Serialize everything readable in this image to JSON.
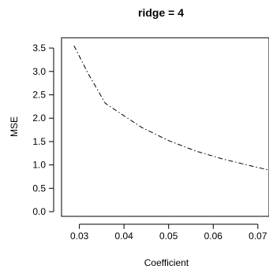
{
  "chart_data": {
    "type": "line",
    "title": "ridge = 4",
    "xlabel": "Coefficient",
    "ylabel": "MSE",
    "xlim": [
      0.026,
      0.0725
    ],
    "ylim": [
      -0.1,
      3.72
    ],
    "xticks": [
      0.03,
      0.04,
      0.05,
      0.06,
      0.07
    ],
    "xtick_labels": [
      "0.03",
      "0.04",
      "0.05",
      "0.06",
      "0.07"
    ],
    "yticks": [
      0.0,
      0.5,
      1.0,
      1.5,
      2.0,
      2.5,
      3.0,
      3.5
    ],
    "ytick_labels": [
      "0.0",
      "0.5",
      "1.0",
      "1.5",
      "2.0",
      "2.5",
      "3.0",
      "3.5"
    ],
    "grid": false,
    "legend": "none",
    "line_style": "dashdot",
    "line_color": "#000000",
    "series": [
      {
        "x": [
          0.0288,
          0.032,
          0.0358,
          0.04,
          0.044,
          0.05,
          0.056,
          0.062,
          0.068,
          0.0725
        ],
        "y": [
          3.55,
          2.95,
          2.32,
          2.05,
          1.8,
          1.52,
          1.3,
          1.13,
          0.99,
          0.89
        ]
      }
    ]
  }
}
